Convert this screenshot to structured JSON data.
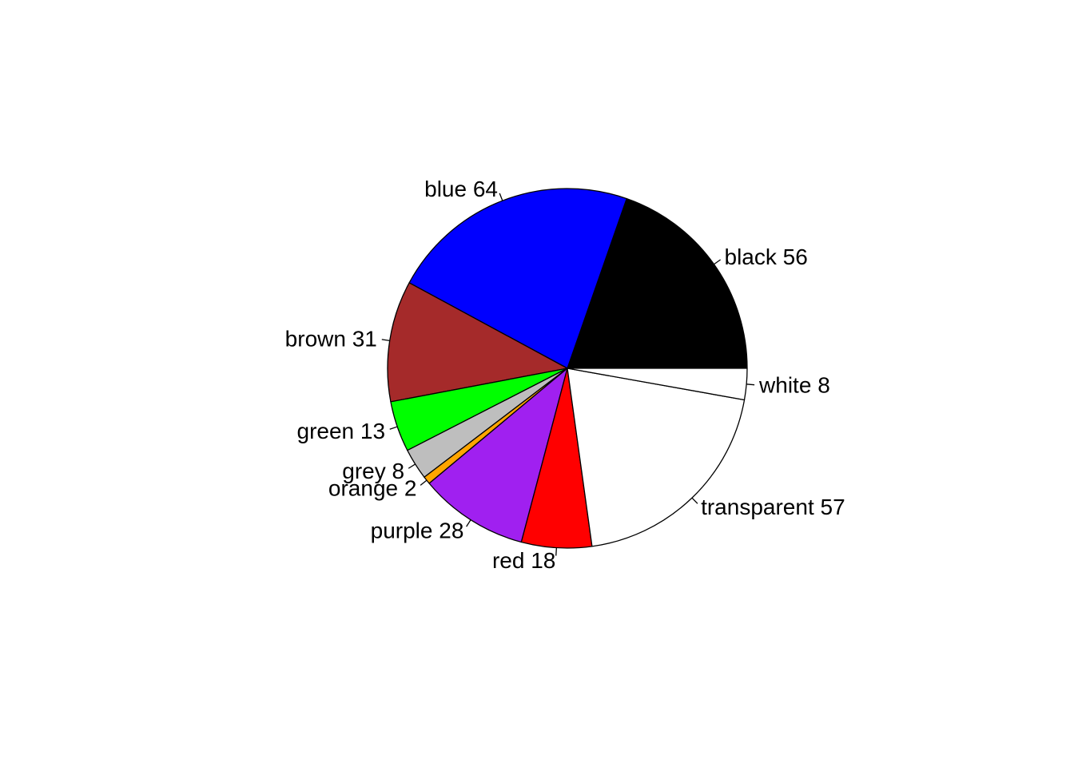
{
  "chart_data": {
    "type": "pie",
    "title": "",
    "start_angle_deg": 0,
    "direction": "counterclockwise",
    "slices": [
      {
        "name": "black",
        "value": 56,
        "label": "black 56",
        "color": "#000000"
      },
      {
        "name": "blue",
        "value": 64,
        "label": "blue 64",
        "color": "#0000FF"
      },
      {
        "name": "brown",
        "value": 31,
        "label": "brown 31",
        "color": "#A52A2A"
      },
      {
        "name": "green",
        "value": 13,
        "label": "green 13",
        "color": "#00FF00"
      },
      {
        "name": "grey",
        "value": 8,
        "label": "grey 8",
        "color": "#BEBEBE"
      },
      {
        "name": "orange",
        "value": 2,
        "label": "orange 2",
        "color": "#FFA500"
      },
      {
        "name": "purple",
        "value": 28,
        "label": "purple 28",
        "color": "#A020F0"
      },
      {
        "name": "red",
        "value": 18,
        "label": "red 18",
        "color": "#FF0000"
      },
      {
        "name": "transparent",
        "value": 57,
        "label": "transparent 57",
        "color": "#FFFFFF"
      },
      {
        "name": "white",
        "value": 8,
        "label": "white 8",
        "color": "#FFFFFF"
      }
    ]
  }
}
